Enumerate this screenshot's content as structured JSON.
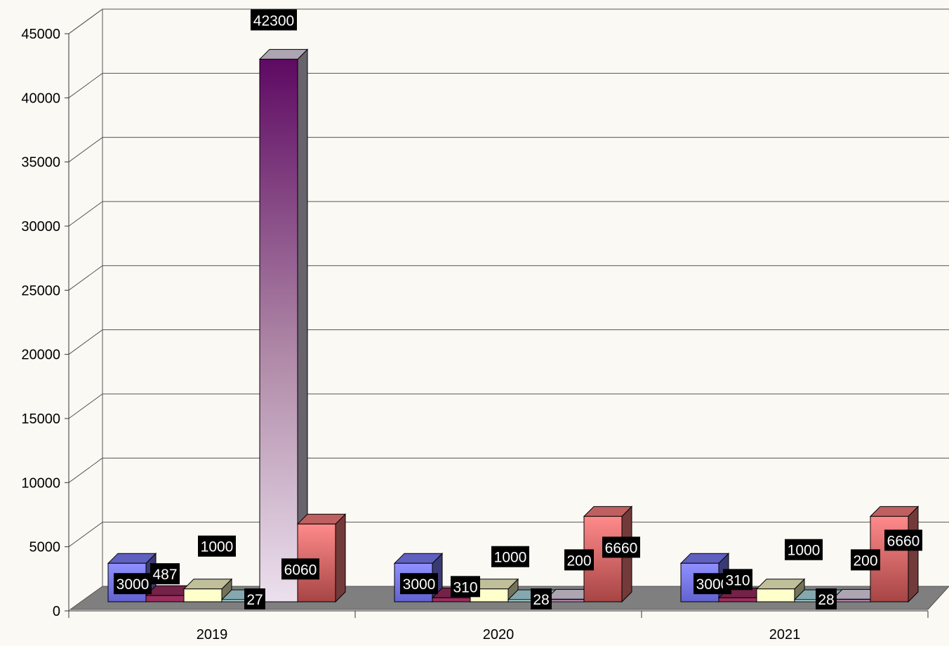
{
  "chart_data": {
    "type": "bar",
    "categories": [
      "2019",
      "2020",
      "2021"
    ],
    "ylim": [
      0,
      45000
    ],
    "yticks": [
      0,
      5000,
      10000,
      15000,
      20000,
      25000,
      30000,
      35000,
      40000,
      45000
    ],
    "grid": true,
    "legend": "none",
    "series": [
      {
        "values": [
          3000,
          3000,
          3000
        ],
        "color": "#8080ff",
        "labels": [
          "3000",
          "3000",
          "3000"
        ]
      },
      {
        "values": [
          487,
          310,
          310
        ],
        "color": "#9b2d5e",
        "labels": [
          "487",
          "310",
          "310"
        ]
      },
      {
        "values": [
          1000,
          1000,
          1000
        ],
        "color": "#ffffcc",
        "labels": [
          "1000",
          "1000",
          "1000"
        ]
      },
      {
        "values": [
          27,
          28,
          28
        ],
        "color": "#b0e0e6",
        "labels": [
          "27",
          "28",
          "28"
        ]
      },
      {
        "values": [
          42300,
          200,
          200
        ],
        "color": "#e8dcef",
        "labels": [
          "42300",
          "200",
          "200"
        ]
      },
      {
        "values": [
          6060,
          6660,
          6660
        ],
        "color": "#ff8080",
        "labels": [
          "6060",
          "6660",
          "6660"
        ]
      }
    ]
  }
}
